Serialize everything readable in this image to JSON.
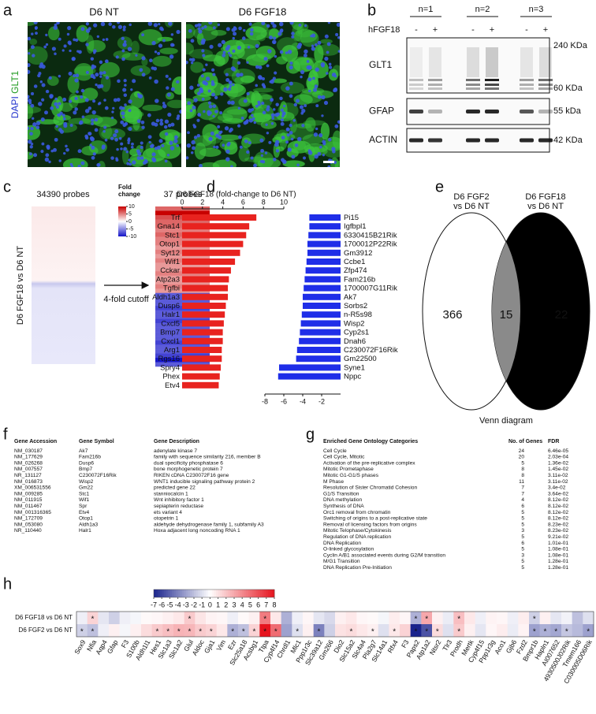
{
  "panel_labels": [
    "a",
    "b",
    "c",
    "d",
    "e",
    "f",
    "g",
    "h"
  ],
  "a": {
    "titles": [
      "D6 NT",
      "D6 FGF18"
    ],
    "stain_labels": [
      "DAPI",
      "GLT1"
    ]
  },
  "b": {
    "groups": [
      "n=1",
      "n=2",
      "n=3"
    ],
    "treatment": "hFGF18",
    "signs": [
      "-",
      "+",
      "-",
      "+",
      "-",
      "+"
    ],
    "blots": [
      {
        "name": "GLT1",
        "markers": [
          "240 KDa",
          "60 KDa"
        ]
      },
      {
        "name": "GFAP",
        "markers": [
          "55 kDa"
        ]
      },
      {
        "name": "ACTIN",
        "markers": [
          "42 KDa"
        ]
      }
    ]
  },
  "e": {
    "left_label": [
      "D6 FGF2",
      "vs D6 NT"
    ],
    "right_label": [
      "D6 FGF18",
      "vs D6 NT"
    ],
    "counts": [
      "366",
      "15",
      "22"
    ],
    "caption": "Venn diagram"
  },
  "f": {
    "headers": [
      "Gene Accession",
      "Gene Symbol",
      "Gene Description"
    ],
    "rows": [
      [
        "NM_030187",
        "Ak7",
        "adenylate kinase 7"
      ],
      [
        "NM_177629",
        "Fam216b",
        "family with sequence similarity 216, member B"
      ],
      [
        "NM_026268",
        "Dusp6",
        "dual specificity phosphatase 6"
      ],
      [
        "NM_007557",
        "Bmp7",
        "bone morphogenetic protein 7"
      ],
      [
        "NR_131127",
        "C230072F16Rik",
        "RIKEN  cDNA C230072F16 gene"
      ],
      [
        "NM_016873",
        "Wisp2",
        "WNT1 inducible signaling pathway protein 2"
      ],
      [
        "XM_006531556",
        "Gm22",
        "predicted gene 22"
      ],
      [
        "NM_009285",
        "Stc1",
        "stanniocalcin 1"
      ],
      [
        "NM_011915",
        "Wif1",
        "Wnt inhibitory factor 1"
      ],
      [
        "NM_011467",
        "Spr",
        "sepiapterin reductase"
      ],
      [
        "NM_001316365",
        "Etv4",
        "ets variant 4"
      ],
      [
        "NM_172709",
        "Otop1",
        "otopetrin 1"
      ],
      [
        "NM_053080",
        "Aldh1a3",
        "aldehyde dehydrogenase family 1, subfamily A3"
      ],
      [
        "NR_110440",
        "Halr1",
        "Hoxa adjacent long noncoding RNA 1"
      ]
    ]
  },
  "g": {
    "headers": [
      "Enriched Gene Ontology Categories",
      "No. of Genes",
      "FDR"
    ],
    "rows": [
      [
        "Cell Cycle",
        24,
        "6.46e-05"
      ],
      [
        "Cell Cycle, Mitotic",
        20,
        "2.03e-04"
      ],
      [
        "Activation of the pre-replicative complex",
        5,
        "1.36e-02"
      ],
      [
        "Mitotic Prometaphase",
        8,
        "1.45e-02"
      ],
      [
        "Mitotic G1-G1/S phases",
        8,
        "3.11e-02"
      ],
      [
        "M Phase",
        11,
        "3.11e-02"
      ],
      [
        "Resolution of Sister Chromatid Cohesion",
        7,
        "3.4e-02"
      ],
      [
        "G1/S Transition",
        7,
        "3.64e-02"
      ],
      [
        "DNA methylation",
        4,
        "8.12e-02"
      ],
      [
        "Synthesis of DNA",
        6,
        "8.12e-02"
      ],
      [
        "Orc1 removal from chromatin",
        5,
        "8.12e-02"
      ],
      [
        "Switching of origins to a post-replicative state",
        5,
        "8.12e-02"
      ],
      [
        "Removal of licensing factors from origins",
        5,
        "8.23e-02"
      ],
      [
        "Mitotic Telophase/Cytokinesis",
        3,
        "8.23e-02"
      ],
      [
        "Regulation of DNA replication",
        5,
        "9.21e-02"
      ],
      [
        "DNA Replication",
        6,
        "1.01e-01"
      ],
      [
        "O-linked glycosylation",
        5,
        "1.08e-01"
      ],
      [
        "Cyclin A/B1 associated events during G2/M transition",
        3,
        "1.08e-01"
      ],
      [
        "M/G1 Transition",
        5,
        "1.28e-01"
      ],
      [
        "DNA Replication Pre-Initiation",
        5,
        "1.28e-01"
      ]
    ]
  },
  "chart_data": [
    {
      "type": "heatmap",
      "ylabel": "D6 FGF18 vs D6 NT",
      "panel_titles": [
        "34390 probes",
        "37 probes"
      ],
      "annotation": "4-fold cutoff",
      "colorbar_title": [
        "Fold",
        "change"
      ],
      "colorbar_ticks": [
        10,
        5,
        0,
        -5,
        -10
      ],
      "values": [
        6,
        10,
        7,
        6,
        6,
        5,
        6,
        5,
        5,
        4,
        5,
        4,
        5,
        4,
        4,
        5,
        4,
        4,
        5,
        4,
        -7,
        -7,
        -7,
        -8,
        -7,
        -7,
        -8,
        -7,
        -7,
        -7,
        -7,
        -8,
        -7,
        -7,
        -8,
        -10,
        -7
      ]
    },
    {
      "type": "bar",
      "title": "D6 FGF18 (fold-change to D6 NT)",
      "series": [
        {
          "color": "#e8231f",
          "categories": [
            "Trf",
            "Gna14",
            "Stc1",
            "Otop1",
            "Syt12",
            "Wif1",
            "Cckar",
            "Atp2a3",
            "Tgfbi",
            "Aldh1a3",
            "Dusp6",
            "Halr1",
            "Cxcl5",
            "Bmp7",
            "Cxcl1",
            "Arg1",
            "Rgs16",
            "Spry4",
            "Phex",
            "Etv4"
          ],
          "values": [
            7.3,
            6.6,
            6.3,
            6.0,
            5.7,
            5.2,
            4.8,
            4.6,
            4.5,
            4.5,
            4.3,
            4.2,
            4.1,
            4.0,
            4.0,
            3.9,
            3.9,
            3.8,
            3.7,
            3.6
          ]
        },
        {
          "color": "#1f2ee8",
          "categories": [
            "Pi15",
            "Igfbpl1",
            "6330415B21Rik",
            "1700012P22Rik",
            "Gm3912",
            "Ccbe1",
            "Zfp474",
            "Fam216b",
            "1700007G11Rik",
            "Ak7",
            "Sorbs2",
            "n-R5s98",
            "Wisp2",
            "Cyp2s1",
            "Dnah6",
            "C230072F16Rik",
            "Gm22500",
            "Syne1",
            "Nppc"
          ],
          "values": [
            -3.3,
            -3.3,
            -3.4,
            -3.5,
            -3.5,
            -3.6,
            -3.7,
            -3.8,
            -3.9,
            -4.0,
            -4.0,
            -4.1,
            -4.2,
            -4.3,
            -4.4,
            -4.6,
            -4.7,
            -6.5,
            -6.6
          ],
          "axis": "x2"
        }
      ],
      "xlim": [
        0,
        10
      ],
      "xticks": [
        0,
        2,
        4,
        6,
        8,
        10
      ],
      "x2lim": [
        -8,
        0
      ],
      "x2ticks": [
        -8,
        -6,
        -4,
        -2
      ]
    },
    {
      "type": "heatmap",
      "colorbar_ticks": [
        -7,
        -6,
        -5,
        -4,
        -3,
        -2,
        -1,
        0,
        1,
        2,
        3,
        4,
        5,
        6,
        7,
        8
      ],
      "rows": [
        "D6 FGF18 vs D6 NT",
        "D6 FGF2 vs D6 NT"
      ],
      "columns": [
        "Sox9",
        "Nfia",
        "Aqp4",
        "Gfap",
        "F3",
        "S100b",
        "Aldh1l1",
        "Hes1",
        "Slc1a3",
        "Slc1a2",
        "Glul",
        "Aldoc",
        "Gja1",
        "Vim",
        "Ezr",
        "Slc25a18",
        "Acsbg1",
        "Ttpa",
        "Cyp4f14",
        "Chrdl1",
        "Mlc1",
        "Ppp1r3c",
        "Slc39a12",
        "Gm266",
        "Dio2",
        "Slc15a2",
        "Slc4a4",
        "Pla2g7",
        "Slc14a1",
        "Rfx4",
        "F3",
        "Paps2",
        "Atp1a2",
        "Ntsr2",
        "Tlr3",
        "Prodh",
        "Mertk",
        "Cyp4f15",
        "Ppp1r3g",
        "Aco1",
        "Gjb6",
        "Fzd2",
        "Bmpr1b",
        "Hapln1",
        "AI007652",
        "4930500J02Rik",
        "Tmem166",
        "C030005D06Rik"
      ],
      "values": [
        [
          -0.5,
          1.5,
          -0.8,
          -1.5,
          -0.5,
          -0.3,
          0.2,
          0.3,
          0.5,
          0.8,
          1.8,
          0.9,
          0.4,
          0.3,
          -0.5,
          0.2,
          0.5,
          4.5,
          0.8,
          -2.5,
          -0.5,
          0.3,
          -0.8,
          -1.2,
          0.5,
          0.8,
          0.3,
          0.2,
          -0.3,
          0.6,
          0.3,
          -2.5,
          3.0,
          0.5,
          -0.6,
          2.2,
          0.8,
          -0.5,
          0.4,
          0.3,
          -0.5,
          0.6,
          -1.5,
          0.5,
          -0.8,
          -0.4,
          -2.0,
          -1.0
        ],
        [
          -1.5,
          -2.0,
          -0.5,
          0.5,
          -0.3,
          0.5,
          1.2,
          1.8,
          2.2,
          2.6,
          2.5,
          1.8,
          1.5,
          0.8,
          -2.5,
          -2.0,
          1.5,
          8.0,
          5.0,
          -3.0,
          -1.0,
          0.5,
          -4.0,
          -1.5,
          1.0,
          1.2,
          0.8,
          0.5,
          -1.0,
          0.8,
          1.5,
          -7.0,
          -5.5,
          1.2,
          -1.0,
          1.8,
          0.5,
          -0.8,
          0.3,
          0.6,
          -0.6,
          0.4,
          -3.0,
          -2.5,
          -2.8,
          -1.8,
          -2.2,
          -3.0
        ]
      ],
      "marks": [
        [
          null,
          "*",
          null,
          null,
          null,
          null,
          null,
          null,
          null,
          null,
          "*",
          null,
          null,
          null,
          null,
          null,
          null,
          "*",
          null,
          null,
          null,
          null,
          null,
          null,
          null,
          null,
          null,
          null,
          null,
          null,
          null,
          "*",
          "*",
          null,
          null,
          "*",
          null,
          null,
          null,
          null,
          null,
          null,
          "*",
          null,
          null,
          null,
          null,
          null
        ],
        [
          "*",
          "*",
          null,
          null,
          null,
          null,
          null,
          "*",
          "*",
          "*",
          "*",
          "*",
          "*",
          null,
          "*",
          "*",
          "*",
          "*",
          "*",
          null,
          "*",
          null,
          "*",
          null,
          null,
          "*",
          null,
          "*",
          null,
          "*",
          null,
          "*",
          "*",
          "*",
          null,
          "*",
          null,
          null,
          null,
          null,
          null,
          null,
          "*",
          "*",
          "*",
          "*",
          null,
          "*"
        ]
      ]
    }
  ]
}
